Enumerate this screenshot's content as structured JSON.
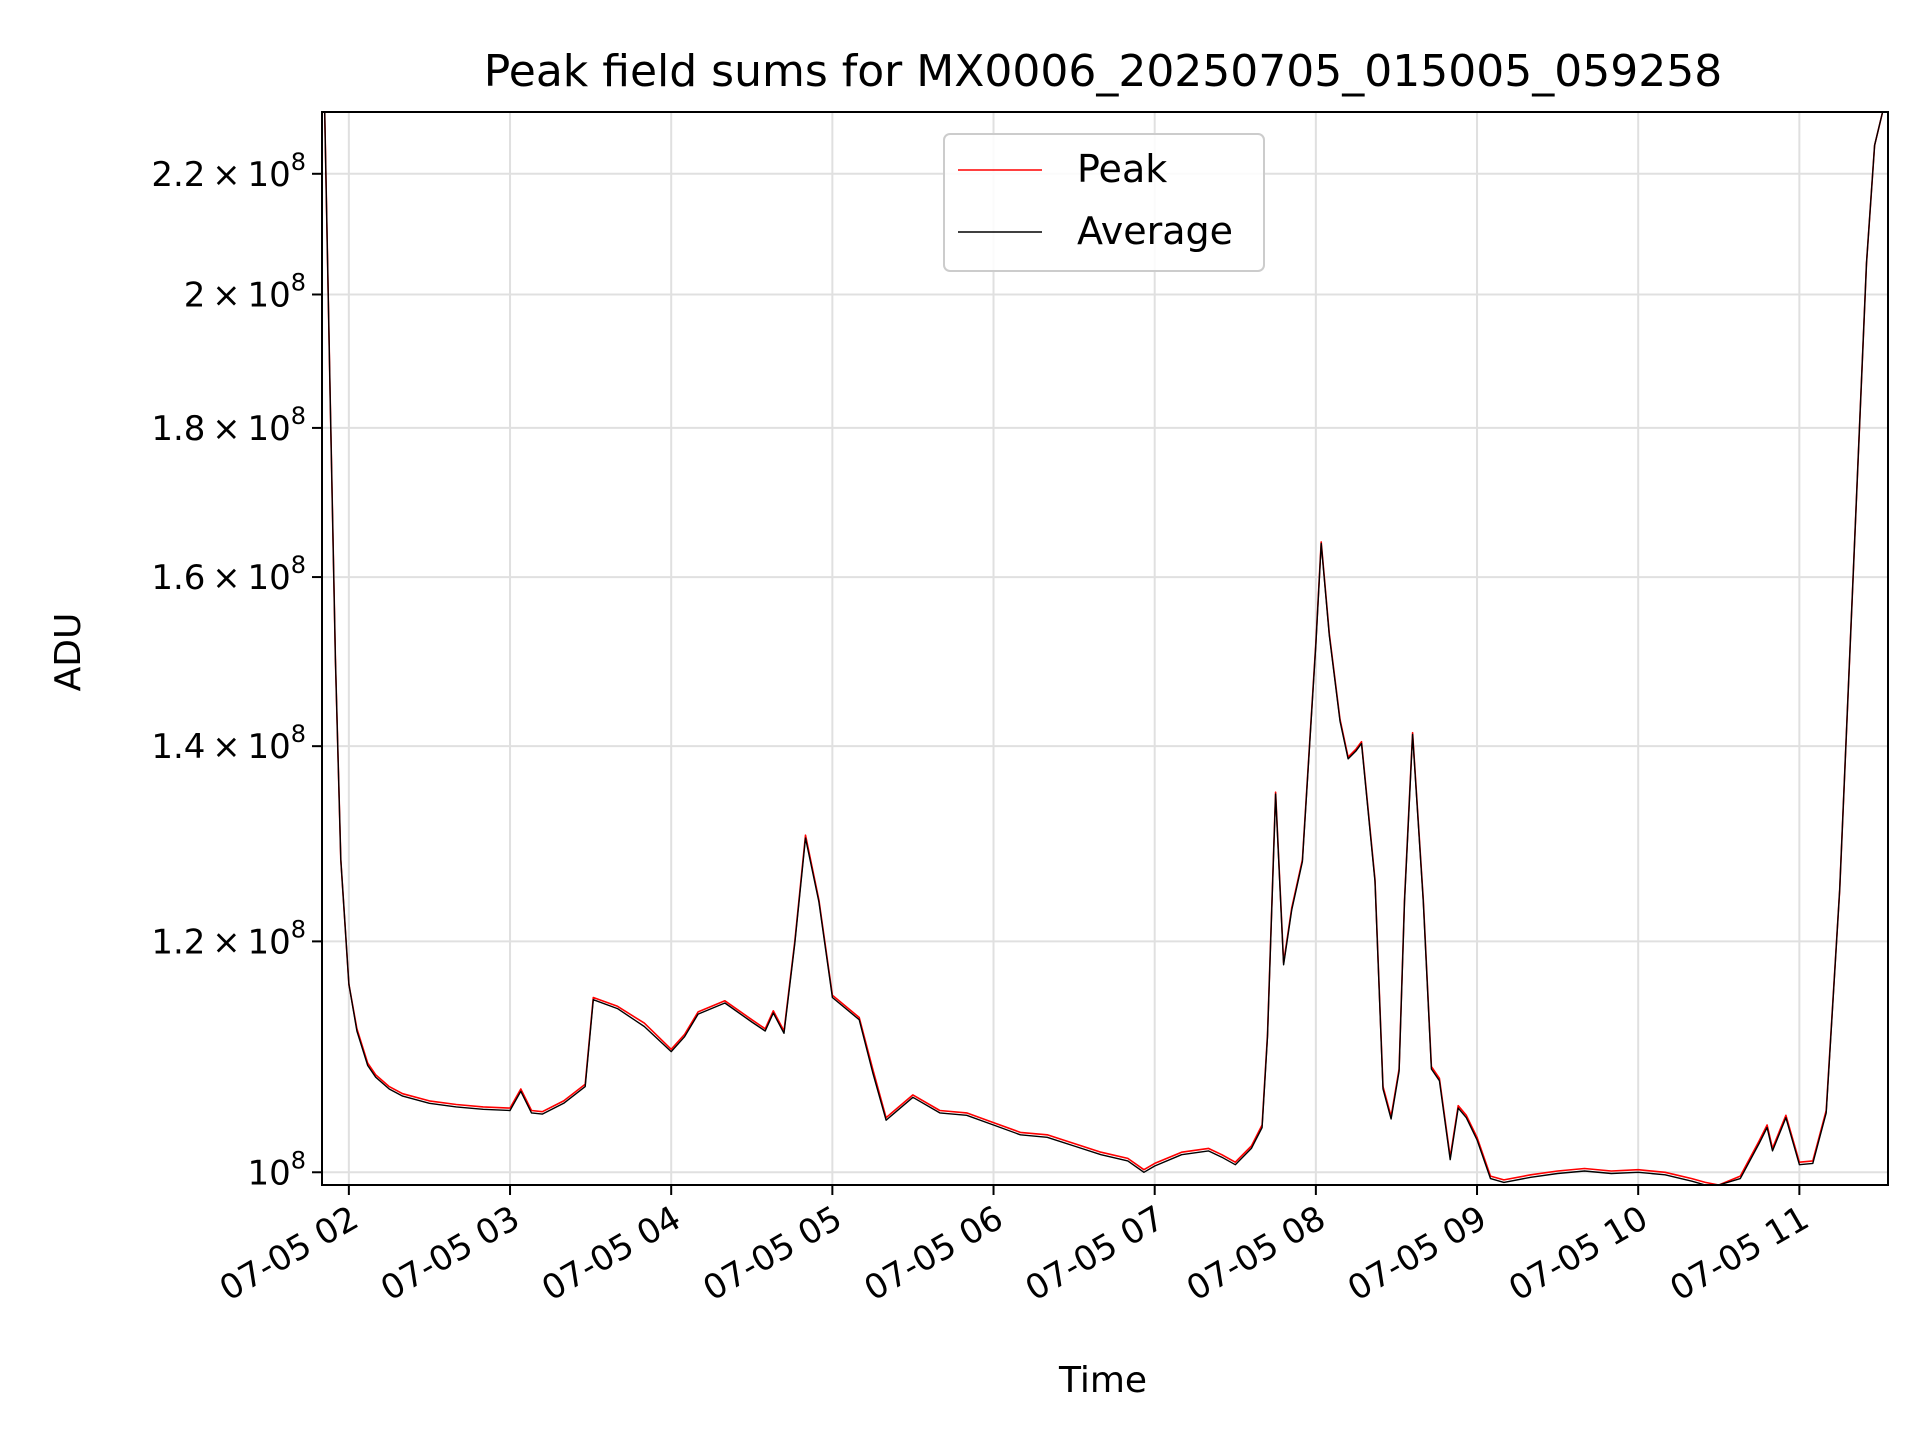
{
  "chart_data": {
    "type": "line",
    "title": "Peak field sums for MX0006_20250705_015005_059258",
    "xlabel": "Time",
    "ylabel": "ADU",
    "yscale": "log",
    "grid": true,
    "legend_position": "upper center",
    "xlim": [
      "2025-07-05 01:50",
      "2025-07-05 11:33"
    ],
    "ylim": [
      99000000,
      231000000
    ],
    "x_ticks": [
      {
        "value": "2025-07-05 02:00",
        "label": "07-05 02"
      },
      {
        "value": "2025-07-05 03:00",
        "label": "07-05 03"
      },
      {
        "value": "2025-07-05 04:00",
        "label": "07-05 04"
      },
      {
        "value": "2025-07-05 05:00",
        "label": "07-05 05"
      },
      {
        "value": "2025-07-05 06:00",
        "label": "07-05 06"
      },
      {
        "value": "2025-07-05 07:00",
        "label": "07-05 07"
      },
      {
        "value": "2025-07-05 08:00",
        "label": "07-05 08"
      },
      {
        "value": "2025-07-05 09:00",
        "label": "07-05 09"
      },
      {
        "value": "2025-07-05 10:00",
        "label": "07-05 10"
      },
      {
        "value": "2025-07-05 11:00",
        "label": "07-05 11"
      }
    ],
    "y_ticks": [
      {
        "value": 100000000,
        "mantissa": "",
        "exp": "8"
      },
      {
        "value": 120000000,
        "mantissa": "1.2",
        "exp": "8"
      },
      {
        "value": 140000000,
        "mantissa": "1.4",
        "exp": "8"
      },
      {
        "value": 160000000,
        "mantissa": "1.6",
        "exp": "8"
      },
      {
        "value": 180000000,
        "mantissa": "1.8",
        "exp": "8"
      },
      {
        "value": 200000000,
        "mantissa": "2",
        "exp": "8"
      },
      {
        "value": 220000000,
        "mantissa": "2.2",
        "exp": "8"
      }
    ],
    "series": [
      {
        "name": "Peak",
        "color": "#ff0000",
        "x": [
          "2025-07-05 01:50",
          "2025-07-05 01:51",
          "2025-07-05 01:53",
          "2025-07-05 01:55",
          "2025-07-05 01:57",
          "2025-07-05 02:00",
          "2025-07-05 02:03",
          "2025-07-05 02:07",
          "2025-07-05 02:10",
          "2025-07-05 02:15",
          "2025-07-05 02:20",
          "2025-07-05 02:30",
          "2025-07-05 02:40",
          "2025-07-05 02:50",
          "2025-07-05 03:00",
          "2025-07-05 03:04",
          "2025-07-05 03:08",
          "2025-07-05 03:12",
          "2025-07-05 03:20",
          "2025-07-05 03:28",
          "2025-07-05 03:31",
          "2025-07-05 03:40",
          "2025-07-05 03:50",
          "2025-07-05 04:00",
          "2025-07-05 04:05",
          "2025-07-05 04:10",
          "2025-07-05 04:20",
          "2025-07-05 04:30",
          "2025-07-05 04:35",
          "2025-07-05 04:38",
          "2025-07-05 04:42",
          "2025-07-05 04:46",
          "2025-07-05 04:50",
          "2025-07-05 04:55",
          "2025-07-05 05:00",
          "2025-07-05 05:10",
          "2025-07-05 05:15",
          "2025-07-05 05:20",
          "2025-07-05 05:30",
          "2025-07-05 05:40",
          "2025-07-05 05:50",
          "2025-07-05 06:00",
          "2025-07-05 06:10",
          "2025-07-05 06:20",
          "2025-07-05 06:30",
          "2025-07-05 06:40",
          "2025-07-05 06:50",
          "2025-07-05 06:56",
          "2025-07-05 07:00",
          "2025-07-05 07:10",
          "2025-07-05 07:20",
          "2025-07-05 07:25",
          "2025-07-05 07:30",
          "2025-07-05 07:36",
          "2025-07-05 07:40",
          "2025-07-05 07:42",
          "2025-07-05 07:45",
          "2025-07-05 07:48",
          "2025-07-05 07:51",
          "2025-07-05 07:55",
          "2025-07-05 08:00",
          "2025-07-05 08:02",
          "2025-07-05 08:05",
          "2025-07-05 08:09",
          "2025-07-05 08:12",
          "2025-07-05 08:15",
          "2025-07-05 08:17",
          "2025-07-05 08:22",
          "2025-07-05 08:25",
          "2025-07-05 08:28",
          "2025-07-05 08:31",
          "2025-07-05 08:33",
          "2025-07-05 08:36",
          "2025-07-05 08:40",
          "2025-07-05 08:43",
          "2025-07-05 08:46",
          "2025-07-05 08:50",
          "2025-07-05 08:53",
          "2025-07-05 08:56",
          "2025-07-05 09:00",
          "2025-07-05 09:05",
          "2025-07-05 09:10",
          "2025-07-05 09:20",
          "2025-07-05 09:30",
          "2025-07-05 09:40",
          "2025-07-05 09:50",
          "2025-07-05 10:00",
          "2025-07-05 10:10",
          "2025-07-05 10:20",
          "2025-07-05 10:25",
          "2025-07-05 10:30",
          "2025-07-05 10:38",
          "2025-07-05 10:45",
          "2025-07-05 10:48",
          "2025-07-05 10:50",
          "2025-07-05 10:55",
          "2025-07-05 11:00",
          "2025-07-05 11:05",
          "2025-07-05 11:10",
          "2025-07-05 11:15",
          "2025-07-05 11:20",
          "2025-07-05 11:25",
          "2025-07-05 11:28",
          "2025-07-05 11:31",
          "2025-07-05 11:33"
        ],
        "y": [
          231000000,
          231000000,
          185000000,
          150000000,
          128000000,
          116000000,
          112000000,
          109000000,
          108000000,
          107000000,
          106400000,
          105800000,
          105500000,
          105300000,
          105200000,
          106800000,
          105000000,
          104900000,
          105800000,
          107200000,
          114800000,
          114000000,
          112500000,
          110200000,
          111500000,
          113500000,
          114500000,
          112800000,
          112000000,
          113600000,
          111800000,
          120000000,
          130500000,
          124000000,
          115000000,
          113000000,
          108500000,
          104400000,
          106300000,
          105000000,
          104800000,
          104000000,
          103200000,
          103000000,
          102300000,
          101600000,
          101100000,
          100200000,
          100700000,
          101600000,
          101900000,
          101400000,
          100800000,
          102100000,
          103800000,
          111500000,
          135000000,
          118000000,
          123200000,
          128000000,
          152000000,
          164500000,
          153000000,
          143000000,
          138800000,
          139700000,
          140500000,
          126000000,
          107000000,
          104500000,
          108500000,
          124000000,
          141500000,
          124000000,
          108700000,
          107700000,
          101200000,
          105400000,
          104600000,
          102800000,
          99700000,
          99400000,
          99800000,
          100100000,
          100300000,
          100100000,
          100200000,
          100000000,
          99500000,
          99200000,
          99000000,
          99700000,
          102500000,
          103800000,
          101900000,
          104600000,
          100800000,
          100900000,
          105000000,
          125000000,
          160000000,
          205000000,
          225000000,
          231000000,
          231000000
        ]
      },
      {
        "name": "Average",
        "color": "#000000",
        "x": [
          "2025-07-05 01:50",
          "2025-07-05 01:51",
          "2025-07-05 01:53",
          "2025-07-05 01:55",
          "2025-07-05 01:57",
          "2025-07-05 02:00",
          "2025-07-05 02:03",
          "2025-07-05 02:07",
          "2025-07-05 02:10",
          "2025-07-05 02:15",
          "2025-07-05 02:20",
          "2025-07-05 02:30",
          "2025-07-05 02:40",
          "2025-07-05 02:50",
          "2025-07-05 03:00",
          "2025-07-05 03:04",
          "2025-07-05 03:08",
          "2025-07-05 03:12",
          "2025-07-05 03:20",
          "2025-07-05 03:28",
          "2025-07-05 03:31",
          "2025-07-05 03:40",
          "2025-07-05 03:50",
          "2025-07-05 04:00",
          "2025-07-05 04:05",
          "2025-07-05 04:10",
          "2025-07-05 04:20",
          "2025-07-05 04:30",
          "2025-07-05 04:35",
          "2025-07-05 04:38",
          "2025-07-05 04:42",
          "2025-07-05 04:46",
          "2025-07-05 04:50",
          "2025-07-05 04:55",
          "2025-07-05 05:00",
          "2025-07-05 05:10",
          "2025-07-05 05:15",
          "2025-07-05 05:20",
          "2025-07-05 05:30",
          "2025-07-05 05:40",
          "2025-07-05 05:50",
          "2025-07-05 06:00",
          "2025-07-05 06:10",
          "2025-07-05 06:20",
          "2025-07-05 06:30",
          "2025-07-05 06:40",
          "2025-07-05 06:50",
          "2025-07-05 06:56",
          "2025-07-05 07:00",
          "2025-07-05 07:10",
          "2025-07-05 07:20",
          "2025-07-05 07:25",
          "2025-07-05 07:30",
          "2025-07-05 07:36",
          "2025-07-05 07:40",
          "2025-07-05 07:42",
          "2025-07-05 07:45",
          "2025-07-05 07:48",
          "2025-07-05 07:51",
          "2025-07-05 07:55",
          "2025-07-05 08:00",
          "2025-07-05 08:02",
          "2025-07-05 08:05",
          "2025-07-05 08:09",
          "2025-07-05 08:12",
          "2025-07-05 08:15",
          "2025-07-05 08:17",
          "2025-07-05 08:22",
          "2025-07-05 08:25",
          "2025-07-05 08:28",
          "2025-07-05 08:31",
          "2025-07-05 08:33",
          "2025-07-05 08:36",
          "2025-07-05 08:40",
          "2025-07-05 08:43",
          "2025-07-05 08:46",
          "2025-07-05 08:50",
          "2025-07-05 08:53",
          "2025-07-05 08:56",
          "2025-07-05 09:00",
          "2025-07-05 09:05",
          "2025-07-05 09:10",
          "2025-07-05 09:20",
          "2025-07-05 09:30",
          "2025-07-05 09:40",
          "2025-07-05 09:50",
          "2025-07-05 10:00",
          "2025-07-05 10:10",
          "2025-07-05 10:20",
          "2025-07-05 10:25",
          "2025-07-05 10:30",
          "2025-07-05 10:38",
          "2025-07-05 10:45",
          "2025-07-05 10:48",
          "2025-07-05 10:50",
          "2025-07-05 10:55",
          "2025-07-05 11:00",
          "2025-07-05 11:05",
          "2025-07-05 11:10",
          "2025-07-05 11:15",
          "2025-07-05 11:20",
          "2025-07-05 11:25",
          "2025-07-05 11:28",
          "2025-07-05 11:31",
          "2025-07-05 11:33"
        ],
        "y": [
          231000000,
          231000000,
          185000000,
          150000000,
          128000000,
          116000000,
          111800000,
          108800000,
          107800000,
          106800000,
          106200000,
          105600000,
          105300000,
          105100000,
          105000000,
          106600000,
          104800000,
          104700000,
          105600000,
          107000000,
          114600000,
          113800000,
          112200000,
          110000000,
          111300000,
          113300000,
          114300000,
          112600000,
          111800000,
          113400000,
          111600000,
          119800000,
          130200000,
          123800000,
          114800000,
          112800000,
          108200000,
          104200000,
          106100000,
          104800000,
          104600000,
          103800000,
          103000000,
          102800000,
          102100000,
          101400000,
          100900000,
          100000000,
          100500000,
          101400000,
          101700000,
          101200000,
          100600000,
          101900000,
          103600000,
          111300000,
          134800000,
          117800000,
          123000000,
          127800000,
          151800000,
          164300000,
          152800000,
          142800000,
          138600000,
          139500000,
          140300000,
          125800000,
          106800000,
          104300000,
          108300000,
          123800000,
          141300000,
          123800000,
          108500000,
          107500000,
          101000000,
          105200000,
          104400000,
          102600000,
          99500000,
          99200000,
          99600000,
          99900000,
          100100000,
          99900000,
          100000000,
          99800000,
          99300000,
          99000000,
          99000000,
          99500000,
          102300000,
          103600000,
          101700000,
          104400000,
          100600000,
          100700000,
          104800000,
          125000000,
          160000000,
          205000000,
          225000000,
          231000000,
          231000000
        ]
      }
    ]
  }
}
